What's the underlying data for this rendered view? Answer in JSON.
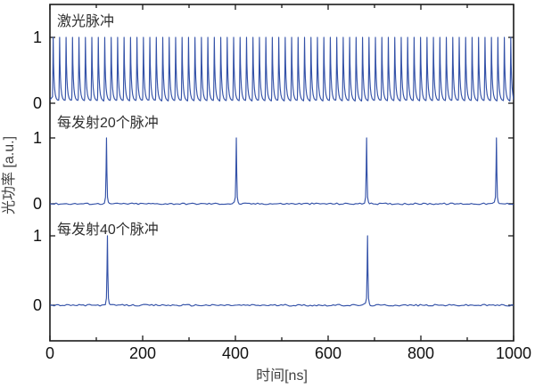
{
  "figure": {
    "background": "#ffffff",
    "trace_color": "#3452a8",
    "axis_color": "#1a1a1a"
  },
  "chart_data": {
    "type": "line",
    "title": "",
    "xlabel": "时间[ns]",
    "ylabel": "光功率 [a.u.]",
    "x_range_ns": [
      0,
      1000
    ],
    "x_major_ticks": [
      0,
      200,
      400,
      600,
      800,
      1000
    ],
    "x_minor_ticks": [
      100,
      300,
      500,
      700,
      900
    ],
    "panel_y_ticks": [
      0,
      1
    ],
    "grid": false,
    "legend": "none",
    "panels": [
      {
        "label": "激光脉冲",
        "pulse_type": "train",
        "pulse_period_ns": 13.9,
        "first_pulse_ns": 7,
        "pulse_peak": 1,
        "valley_level": 0.04
      },
      {
        "label": "每发射20个脉冲",
        "pulse_type": "selected",
        "pulse_times_ns": [
          122,
          402,
          683,
          963
        ],
        "pulse_peak": 1,
        "baseline_level": 0,
        "baseline_noise": 0.012
      },
      {
        "label": "每发射40个脉冲",
        "pulse_type": "selected",
        "pulse_times_ns": [
          124,
          685
        ],
        "pulse_peak": 1,
        "baseline_level": 0,
        "baseline_noise": 0.012
      }
    ]
  }
}
